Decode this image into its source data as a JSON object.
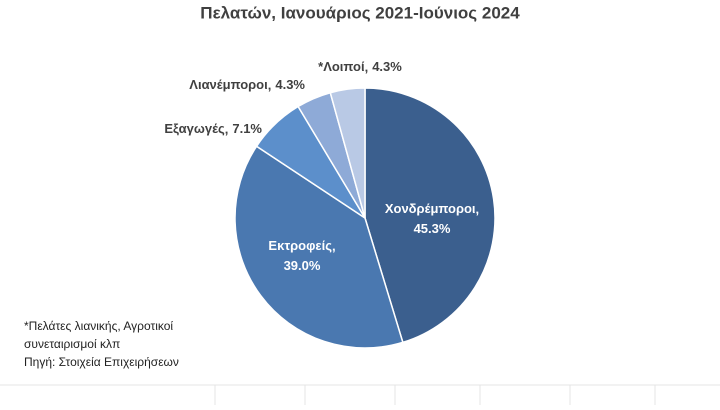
{
  "chart_data": {
    "type": "pie",
    "title": "Πελατών, Ιανουάριος 2021-Ιούνιος 2024",
    "categories": [
      "Χονδρέμποροι",
      "Εκτροφείς",
      "Εξαγωγές",
      "Λιανέμποροι",
      "*Λοιποί"
    ],
    "values": [
      45.3,
      39.0,
      7.1,
      4.3,
      4.3
    ],
    "value_labels": [
      "45.3%",
      "39.0%",
      "7.1%",
      "4.3%",
      "4.3%"
    ],
    "colors": [
      "#3b5f8e",
      "#4a78b0",
      "#5c8fcb",
      "#8eaad7",
      "#b9c9e5"
    ],
    "notes": [
      "*Πελάτες λιανικής, Αγροτικοί",
      "συνεταιρισμοί κλπ",
      "Πηγή: Στοιχεία Επιχειρήσεων"
    ]
  }
}
